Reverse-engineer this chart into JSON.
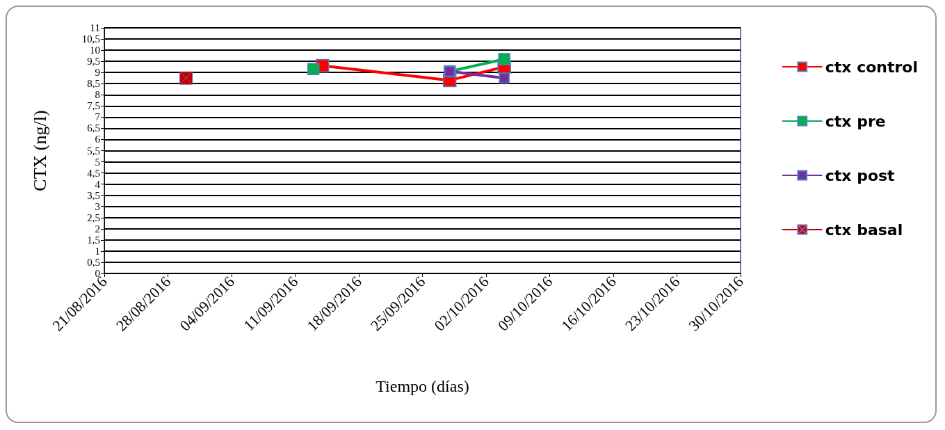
{
  "chart_data": {
    "type": "line",
    "xlabel": "Tiempo (días)",
    "ylabel": "CTX (ng/l)",
    "xlim": [
      "2016-08-21",
      "2016-10-30"
    ],
    "xticks": [
      {
        "value": "2016-08-21",
        "label": "21/08/2016"
      },
      {
        "value": "2016-08-28",
        "label": "28/08/2016"
      },
      {
        "value": "2016-09-04",
        "label": "04/09/2016"
      },
      {
        "value": "2016-09-11",
        "label": "11/09/2016"
      },
      {
        "value": "2016-09-18",
        "label": "18/09/2016"
      },
      {
        "value": "2016-09-25",
        "label": "25/09/2016"
      },
      {
        "value": "2016-10-02",
        "label": "02/10/2016"
      },
      {
        "value": "2016-10-09",
        "label": "09/10/2016"
      },
      {
        "value": "2016-10-16",
        "label": "16/10/2016"
      },
      {
        "value": "2016-10-23",
        "label": "23/10/2016"
      },
      {
        "value": "2016-10-30",
        "label": "30/10/2016"
      }
    ],
    "ylim": [
      0,
      11
    ],
    "yticks": [
      0,
      {
        "value": 0.5,
        "label": "0,5"
      },
      1,
      {
        "value": 1.5,
        "label": "1,5"
      },
      2,
      {
        "value": 2.5,
        "label": "2,5"
      },
      3,
      {
        "value": 3.5,
        "label": "3,5"
      },
      4,
      {
        "value": 4.5,
        "label": "4,5"
      },
      5,
      {
        "value": 5.5,
        "label": "5,5"
      },
      6,
      {
        "value": 6.5,
        "label": "6,5"
      },
      7,
      {
        "value": 7.5,
        "label": "7,5"
      },
      8,
      {
        "value": 8.5,
        "label": "8,5"
      },
      9,
      {
        "value": 9.5,
        "label": "9,5"
      },
      10,
      {
        "value": 10.5,
        "label": "10,5"
      },
      11
    ],
    "grid": "y",
    "legend": "right",
    "marker": "square",
    "series": [
      {
        "name": "ctx control",
        "color": "#ff0000",
        "x": [
          "2016-09-14",
          "2016-09-28",
          "2016-10-04"
        ],
        "values": [
          9.3,
          8.65,
          9.25
        ]
      },
      {
        "name": "ctx pre",
        "color": "#00b050",
        "x": [
          "2016-09-13",
          "2016-09-14",
          "2016-09-28",
          "2016-10-04"
        ],
        "values": [
          9.15,
          null,
          9.05,
          9.6
        ]
      },
      {
        "name": "ctx post",
        "color": "#7030a0",
        "x": [
          "2016-09-28",
          "2016-10-04"
        ],
        "values": [
          9.05,
          8.75
        ]
      },
      {
        "name": "ctx basal",
        "color": "#c00000",
        "marker": "cross",
        "x": [
          "2016-08-30"
        ],
        "values": [
          8.75
        ]
      }
    ]
  }
}
